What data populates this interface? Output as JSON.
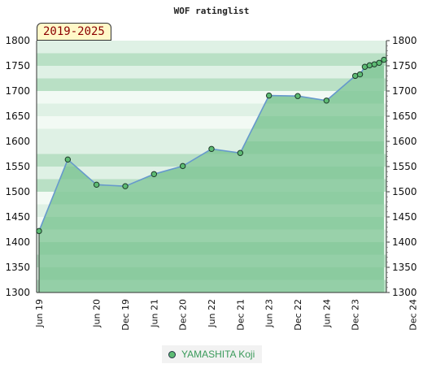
{
  "colors": {
    "series_line": "#6699cc",
    "area_fill": "#7cc493",
    "marker_fill": "#5dbb73",
    "marker_stroke": "#1d3a2a",
    "legend_text": "#3a9a5a",
    "band_a": "#b9e0c5",
    "band_b": "#dff1e5",
    "band_c": "#f2faf4"
  },
  "chart_data": {
    "type": "area",
    "title": "WOF ratinglist",
    "range_label": "2019-2025",
    "ylim": [
      1300,
      1800
    ],
    "yticks": [
      1300,
      1350,
      1400,
      1450,
      1500,
      1550,
      1600,
      1650,
      1700,
      1750,
      1800
    ],
    "xlim": [
      "2019-06",
      "2025-06"
    ],
    "xtick_labels": [
      "Jun 19",
      "Dec 19",
      "Jun 20",
      "Dec 20",
      "Jun 21",
      "Dec 21",
      "Jun 22",
      "Dec 22",
      "Jun 23",
      "Dec 23",
      "Jun 24",
      "Dec 24"
    ],
    "grid": true,
    "legend_position": "bottom-center",
    "series": [
      {
        "name": "YAMASHITA Koji",
        "points": [
          {
            "x": "2019-06",
            "y": 1422
          },
          {
            "x": "2019-12",
            "y": 1564
          },
          {
            "x": "2020-06",
            "y": 1514
          },
          {
            "x": "2020-12",
            "y": 1511
          },
          {
            "x": "2021-06",
            "y": 1535
          },
          {
            "x": "2021-12",
            "y": 1551
          },
          {
            "x": "2022-06",
            "y": 1585
          },
          {
            "x": "2022-12",
            "y": 1577
          },
          {
            "x": "2023-06",
            "y": 1691
          },
          {
            "x": "2023-12",
            "y": 1690
          },
          {
            "x": "2024-06",
            "y": 1681
          },
          {
            "x": "2024-12",
            "y": 1730
          },
          {
            "x": "2025-01",
            "y": 1733
          },
          {
            "x": "2025-02",
            "y": 1748
          },
          {
            "x": "2025-03",
            "y": 1751
          },
          {
            "x": "2025-04",
            "y": 1753
          },
          {
            "x": "2025-05",
            "y": 1756
          },
          {
            "x": "2025-06",
            "y": 1762
          }
        ]
      }
    ]
  }
}
